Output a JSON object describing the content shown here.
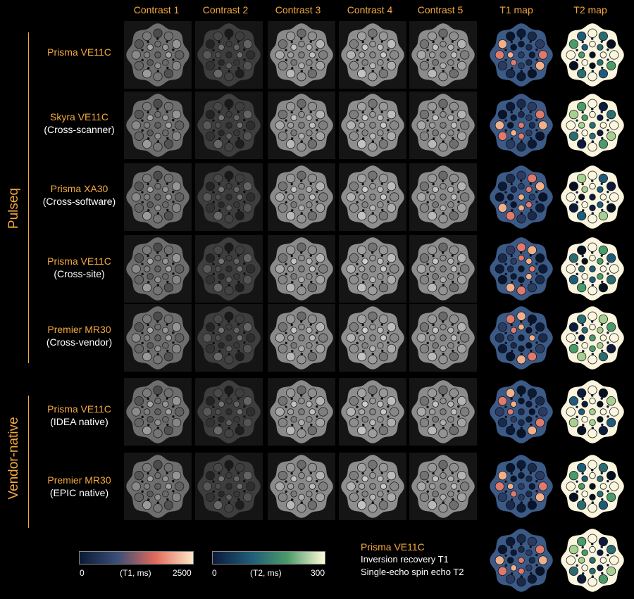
{
  "columns": [
    "Contrast 1",
    "Contrast 2",
    "Contrast 3",
    "Contrast 4",
    "Contrast 5",
    "T1 map",
    "T2 map"
  ],
  "groups": [
    {
      "label": "Pulseq"
    },
    {
      "label": "Vendor-native"
    }
  ],
  "rows": [
    {
      "line1": "Prisma VE11C",
      "line2": ""
    },
    {
      "line1": "Skyra VE11C",
      "line2": "(Cross-scanner)"
    },
    {
      "line1": "Prisma XA30",
      "line2": "(Cross-software)"
    },
    {
      "line1": "Prisma VE11C",
      "line2": "(Cross-site)"
    },
    {
      "line1": "Premier MR30",
      "line2": "(Cross-vendor)"
    },
    {
      "line1": "Prisma VE11C",
      "line2": "(IDEA native)"
    },
    {
      "line1": "Premier MR30",
      "line2": "(EPIC native)"
    }
  ],
  "colorbars": [
    {
      "min": "0",
      "unit": "(T1, ms)",
      "max": "2500",
      "colors": [
        "#0c1a33",
        "#3a4e78",
        "#e06a5a",
        "#fde6c8"
      ]
    },
    {
      "min": "0",
      "unit": "(T2, ms)",
      "max": "300",
      "colors": [
        "#0d1a3a",
        "#1f5a78",
        "#4a9a6a",
        "#fefbd8"
      ]
    }
  ],
  "reference": {
    "title": "Prisma VE11C",
    "line1": "Inversion recovery T1",
    "line2": "Single-echo spin echo T2"
  },
  "colors": {
    "accent": "#f4a93c",
    "t1_background": "#3c5a86",
    "t2_background": "#fbf5de"
  }
}
